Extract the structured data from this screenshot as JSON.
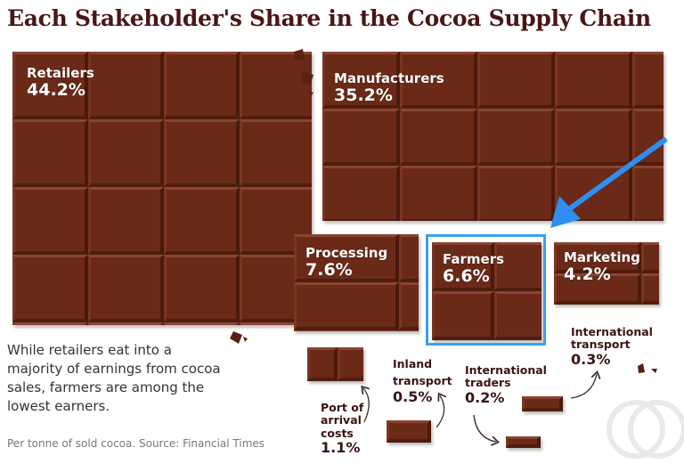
{
  "title": "Each Stakeholder's Share in the Cocoa Supply Chain",
  "note": "While retailers eat into a majority of earnings from cocoa sales, farmers are among the lowest earners.",
  "source": "Per tonne of sold cocoa. Source: Financial Times",
  "colors": {
    "chocolate": "#6b2a18",
    "highlight": "#3aa0f0",
    "title": "#4a1616"
  },
  "chart_data": {
    "type": "pictorial-area",
    "title": "Each Stakeholder's Share in the Cocoa Supply Chain",
    "unit": "%",
    "highlighted": "Farmers",
    "categories": [
      "Retailers",
      "Manufacturers",
      "Processing",
      "Farmers",
      "Marketing",
      "Port of arrival costs",
      "Inland transport",
      "International traders",
      "International transport"
    ],
    "values": [
      44.2,
      35.2,
      7.6,
      6.6,
      4.2,
      1.1,
      0.5,
      0.2,
      0.3
    ],
    "labels": [
      "44.2%",
      "35.2%",
      "7.6%",
      "6.6%",
      "4.2%",
      "1.1%",
      "0.5%",
      "0.2%",
      "0.3%"
    ]
  }
}
